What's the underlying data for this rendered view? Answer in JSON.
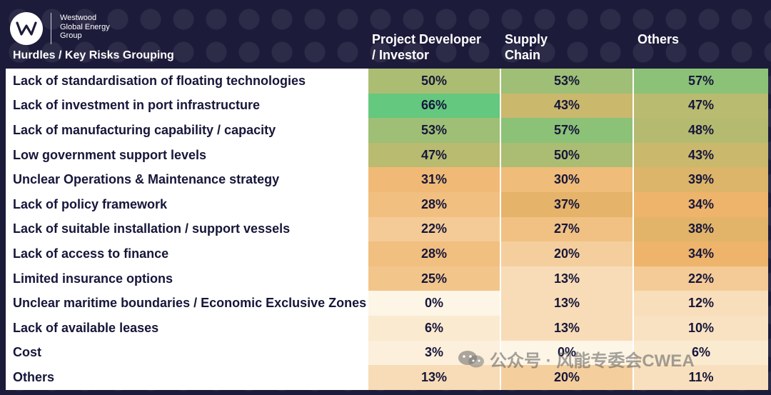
{
  "header": {
    "company_lines": [
      "Westwood",
      "Global Energy",
      "Group"
    ],
    "grouping_label": "Hurdles / Key Risks Grouping",
    "columns": [
      {
        "line1": "Project Developer",
        "line2": "/ Investor"
      },
      {
        "line1": "Supply",
        "line2": "Chain"
      },
      {
        "line1": "",
        "line2": "Others"
      }
    ]
  },
  "rows": [
    {
      "label": "Lack of standardisation of floating technologies",
      "values": [
        "50%",
        "53%",
        "57%"
      ]
    },
    {
      "label": "Lack of investment in port infrastructure",
      "values": [
        "66%",
        "43%",
        "47%"
      ]
    },
    {
      "label": "Lack of manufacturing capability / capacity",
      "values": [
        "53%",
        "57%",
        "48%"
      ]
    },
    {
      "label": "Low government support levels",
      "values": [
        "47%",
        "50%",
        "43%"
      ]
    },
    {
      "label": "Unclear Operations & Maintenance strategy",
      "values": [
        "31%",
        "30%",
        "39%"
      ]
    },
    {
      "label": "Lack of policy framework",
      "values": [
        "28%",
        "37%",
        "34%"
      ]
    },
    {
      "label": "Lack of suitable installation / support vessels",
      "values": [
        "22%",
        "27%",
        "38%"
      ]
    },
    {
      "label": "Lack of access to finance",
      "values": [
        "28%",
        "20%",
        "34%"
      ]
    },
    {
      "label": "Limited insurance options",
      "values": [
        "25%",
        "13%",
        "22%"
      ]
    },
    {
      "label": "Unclear maritime boundaries / Economic Exclusive Zones",
      "values": [
        "0%",
        "13%",
        "12%"
      ]
    },
    {
      "label": "Lack of available leases",
      "values": [
        "6%",
        "13%",
        "10%"
      ]
    },
    {
      "label": "Cost",
      "values": [
        "3%",
        "0%",
        "6%"
      ]
    },
    {
      "label": "Others",
      "values": [
        "13%",
        "20%",
        "11%"
      ]
    }
  ],
  "colors": {
    "background": "#1c1b3a",
    "scale_low": "#fdf5e6",
    "scale_mid": "#eeb267",
    "scale_high": "#64c87f"
  },
  "watermark": "公众号 · 风能专委会CWEA"
}
